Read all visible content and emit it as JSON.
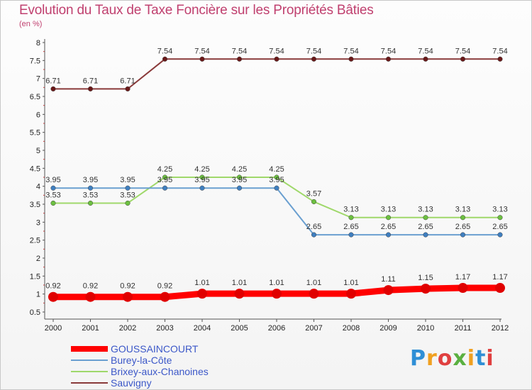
{
  "header": {
    "title": "Evolution du Taux de Taxe Foncière sur les Propriétés Bâties",
    "subtitle": "(en %)"
  },
  "logo": {
    "letters": [
      "P",
      "r",
      "o",
      "x",
      "i",
      "t",
      "i"
    ],
    "letter_colors": [
      "#2f8fd6",
      "#f0a020",
      "#e04040",
      "#5ab040",
      "#f0a020",
      "#2f8fd6",
      "#e04040"
    ]
  },
  "chart_data": {
    "type": "line",
    "title": "Evolution du Taux de Taxe Foncière sur les Propriétés Bâties",
    "ylabel": "(en %)",
    "xlabel": "",
    "x": [
      "2000",
      "2001",
      "2002",
      "2003",
      "2004",
      "2005",
      "2006",
      "2007",
      "2008",
      "2009",
      "2010",
      "2011",
      "2012"
    ],
    "ylim": [
      0.5,
      8
    ],
    "yticks": [
      "0.5",
      "1",
      "1.5",
      "2",
      "2.5",
      "3",
      "3.5",
      "4",
      "4.5",
      "5",
      "5.5",
      "6",
      "6.5",
      "7",
      "7.5",
      "8"
    ],
    "ytick_values": [
      0.5,
      1,
      1.5,
      2,
      2.5,
      3,
      3.5,
      4,
      4.5,
      5,
      5.5,
      6,
      6.5,
      7,
      7.5,
      8
    ],
    "grid": false,
    "legend_position": "bottom-left",
    "series": [
      {
        "name": "GOUSSAINCOURT",
        "color": "#ff0000",
        "marker_color": "#e00000",
        "bold": true,
        "values": [
          0.92,
          0.92,
          0.92,
          0.92,
          1.01,
          1.01,
          1.01,
          1.01,
          1.01,
          1.11,
          1.15,
          1.17,
          1.17
        ],
        "labels": [
          "0.92",
          "0.92",
          "0.92",
          "0.92",
          "1.01",
          "1.01",
          "1.01",
          "1.01",
          "1.01",
          "1.11",
          "1.15",
          "1.17",
          "1.17"
        ]
      },
      {
        "name": "Burey-la-Côte",
        "color": "#6a9fd0",
        "marker_color": "#3f7fc0",
        "bold": false,
        "values": [
          3.95,
          3.95,
          3.95,
          3.95,
          3.95,
          3.95,
          3.95,
          2.65,
          2.65,
          2.65,
          2.65,
          2.65,
          2.65
        ],
        "labels": [
          "3.95",
          "3.95",
          "3.95",
          "3.95",
          "3.95",
          "3.95",
          "3.95",
          "2.65",
          "2.65",
          "2.65",
          "2.65",
          "2.65",
          "2.65"
        ]
      },
      {
        "name": "Brixey-aux-Chanoines",
        "color": "#9fd86a",
        "marker_color": "#6cc040",
        "bold": false,
        "values": [
          3.53,
          3.53,
          3.53,
          4.25,
          4.25,
          4.25,
          4.25,
          3.57,
          3.13,
          3.13,
          3.13,
          3.13,
          3.13
        ],
        "labels": [
          "3.53",
          "3.53",
          "3.53",
          "4.25",
          "4.25",
          "4.25",
          "4.25",
          "3.57",
          "3.13",
          "3.13",
          "3.13",
          "3.13",
          "3.13"
        ]
      },
      {
        "name": "Sauvigny",
        "color": "#8a3a3a",
        "marker_color": "#6a1818",
        "bold": false,
        "values": [
          6.71,
          6.71,
          6.71,
          7.54,
          7.54,
          7.54,
          7.54,
          7.54,
          7.54,
          7.54,
          7.54,
          7.54,
          7.54
        ],
        "labels": [
          "6.71",
          "6.71",
          "6.71",
          "7.54",
          "7.54",
          "7.54",
          "7.54",
          "7.54",
          "7.54",
          "7.54",
          "7.54",
          "7.54",
          "7.54"
        ]
      }
    ]
  }
}
